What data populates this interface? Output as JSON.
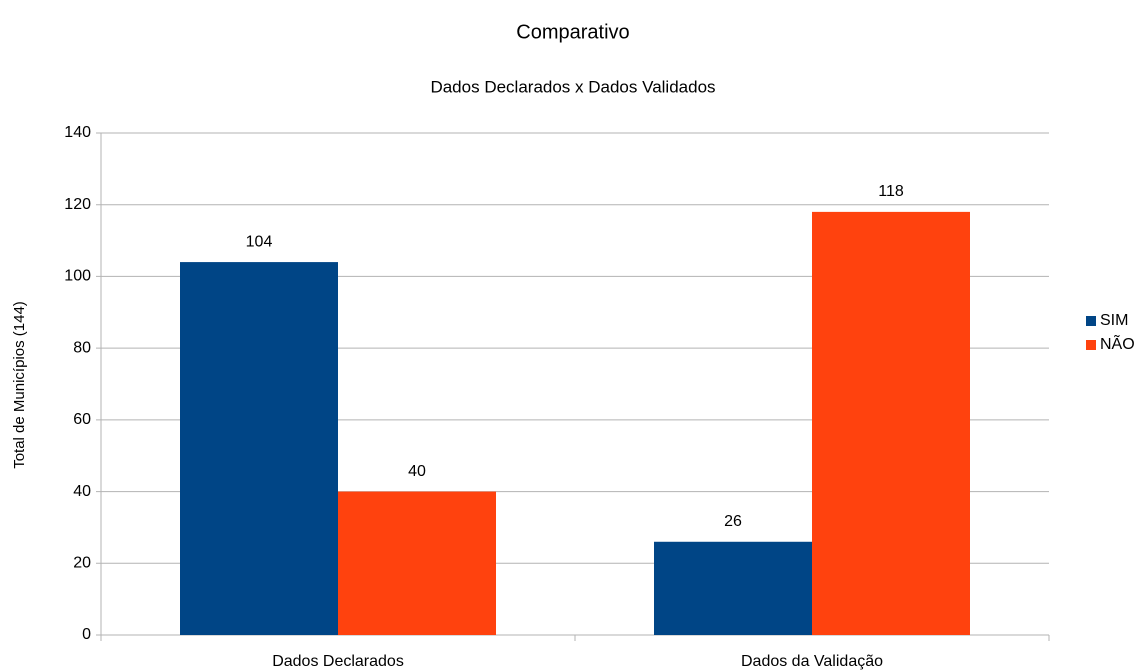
{
  "chart_data": {
    "type": "bar",
    "title": "Comparativo",
    "subtitle": "Dados Declarados x Dados Validados",
    "y_label": "Total de Municípios (144)",
    "categories": [
      "Dados Declarados",
      "Dados da Validação"
    ],
    "series": [
      {
        "name": "SIM",
        "color": "#004586",
        "values": [
          104,
          26
        ]
      },
      {
        "name": "NÃO",
        "color": "#ff420e",
        "values": [
          40,
          118
        ]
      }
    ],
    "ylim": [
      0,
      140
    ],
    "yticks": [
      0,
      20,
      40,
      60,
      80,
      100,
      120,
      140
    ],
    "grid": true,
    "legend": "right"
  }
}
